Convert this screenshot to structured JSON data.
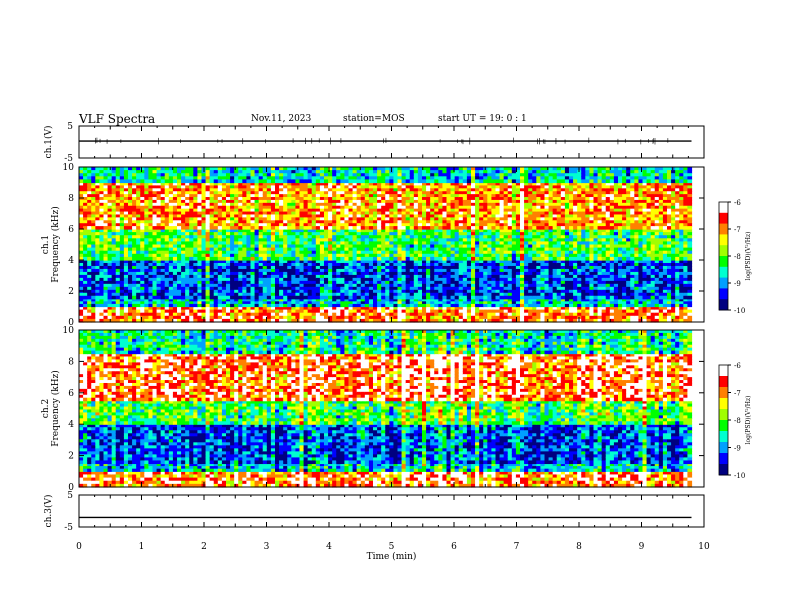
{
  "header": {
    "title": "VLF Spectra",
    "date": "Nov.11, 2023",
    "station": "station=MOS",
    "start_ut": "start UT =  19: 0  : 1"
  },
  "chart_data": [
    {
      "type": "line",
      "panel": "ch1-waveform",
      "ylabel": "ch.1(V)",
      "ylim": [
        -5,
        5
      ],
      "yticks": [
        {
          "value": 5,
          "label": "5"
        },
        {
          "value": -5,
          "label": "-5"
        }
      ],
      "x": [
        0,
        9.8
      ],
      "values": [
        0.3,
        0.3
      ],
      "xlim": [
        0,
        10
      ]
    },
    {
      "type": "heatmap",
      "panel": "ch1-spectrogram",
      "ylabel": "ch.1\nFrequency (kHz)",
      "ylim": [
        0,
        10
      ],
      "xlim": [
        0,
        10
      ],
      "yticks": [
        0,
        2,
        4,
        6,
        8,
        10
      ],
      "data_xmax": 9.8,
      "bands": [
        {
          "f_low": 0,
          "f_high": 1,
          "level": -6.8
        },
        {
          "f_low": 1,
          "f_high": 1.5,
          "level": -8.8
        },
        {
          "f_low": 1.5,
          "f_high": 4,
          "level": -9.3
        },
        {
          "f_low": 4,
          "f_high": 6,
          "level": -8.2
        },
        {
          "f_low": 6,
          "f_high": 9,
          "level": -7.0
        },
        {
          "f_low": 9,
          "f_high": 10,
          "level": -8.7
        }
      ],
      "colorbar": {
        "label": "log(PSD)(V²/Hz)",
        "min": -10,
        "max": -6,
        "ticks": [
          {
            "value": -6,
            "label": "-6"
          },
          {
            "value": -7,
            "label": "-7"
          },
          {
            "value": -8,
            "label": "-8"
          },
          {
            "value": -9,
            "label": "-9"
          },
          {
            "value": -10,
            "label": "-10"
          }
        ]
      }
    },
    {
      "type": "heatmap",
      "panel": "ch2-spectrogram",
      "ylabel": "ch.2\nFrequency (kHz)",
      "ylim": [
        0,
        10
      ],
      "xlim": [
        0,
        10
      ],
      "yticks": [
        0,
        2,
        4,
        6,
        8,
        10
      ],
      "data_xmax": 9.8,
      "bands": [
        {
          "f_low": 0,
          "f_high": 1,
          "level": -6.8
        },
        {
          "f_low": 1,
          "f_high": 1.5,
          "level": -8.8
        },
        {
          "f_low": 1.5,
          "f_high": 4,
          "level": -9.3
        },
        {
          "f_low": 4,
          "f_high": 5.5,
          "level": -8.2
        },
        {
          "f_low": 5.5,
          "f_high": 8.5,
          "level": -6.7
        },
        {
          "f_low": 8.5,
          "f_high": 10,
          "level": -8.5
        }
      ],
      "colorbar": {
        "label": "log(PSD)(V²/Hz)",
        "min": -10,
        "max": -6,
        "ticks": [
          {
            "value": -6,
            "label": "-6"
          },
          {
            "value": -7,
            "label": "-7"
          },
          {
            "value": -8,
            "label": "-8"
          },
          {
            "value": -9,
            "label": "-9"
          },
          {
            "value": -10,
            "label": "-10"
          }
        ]
      }
    },
    {
      "type": "line",
      "panel": "ch3-waveform",
      "ylabel": "ch.3(V)",
      "ylim": [
        -5,
        5
      ],
      "yticks": [
        {
          "value": 5,
          "label": "5"
        },
        {
          "value": -5,
          "label": "-5"
        }
      ],
      "x": [
        0,
        9.8
      ],
      "values": [
        -2,
        -2
      ],
      "xlim": [
        0,
        10
      ],
      "xlabel": "Time (min)",
      "xticks": [
        0,
        1,
        2,
        3,
        4,
        5,
        6,
        7,
        8,
        9,
        10
      ]
    }
  ],
  "colors": {
    "colormap": [
      "#000080",
      "#0000ff",
      "#00a0ff",
      "#00ffd0",
      "#00ff00",
      "#a0ff00",
      "#ffff00",
      "#ff8000",
      "#ff0000",
      "#ffffff"
    ],
    "axes": "#000000",
    "background": "#ffffff"
  }
}
